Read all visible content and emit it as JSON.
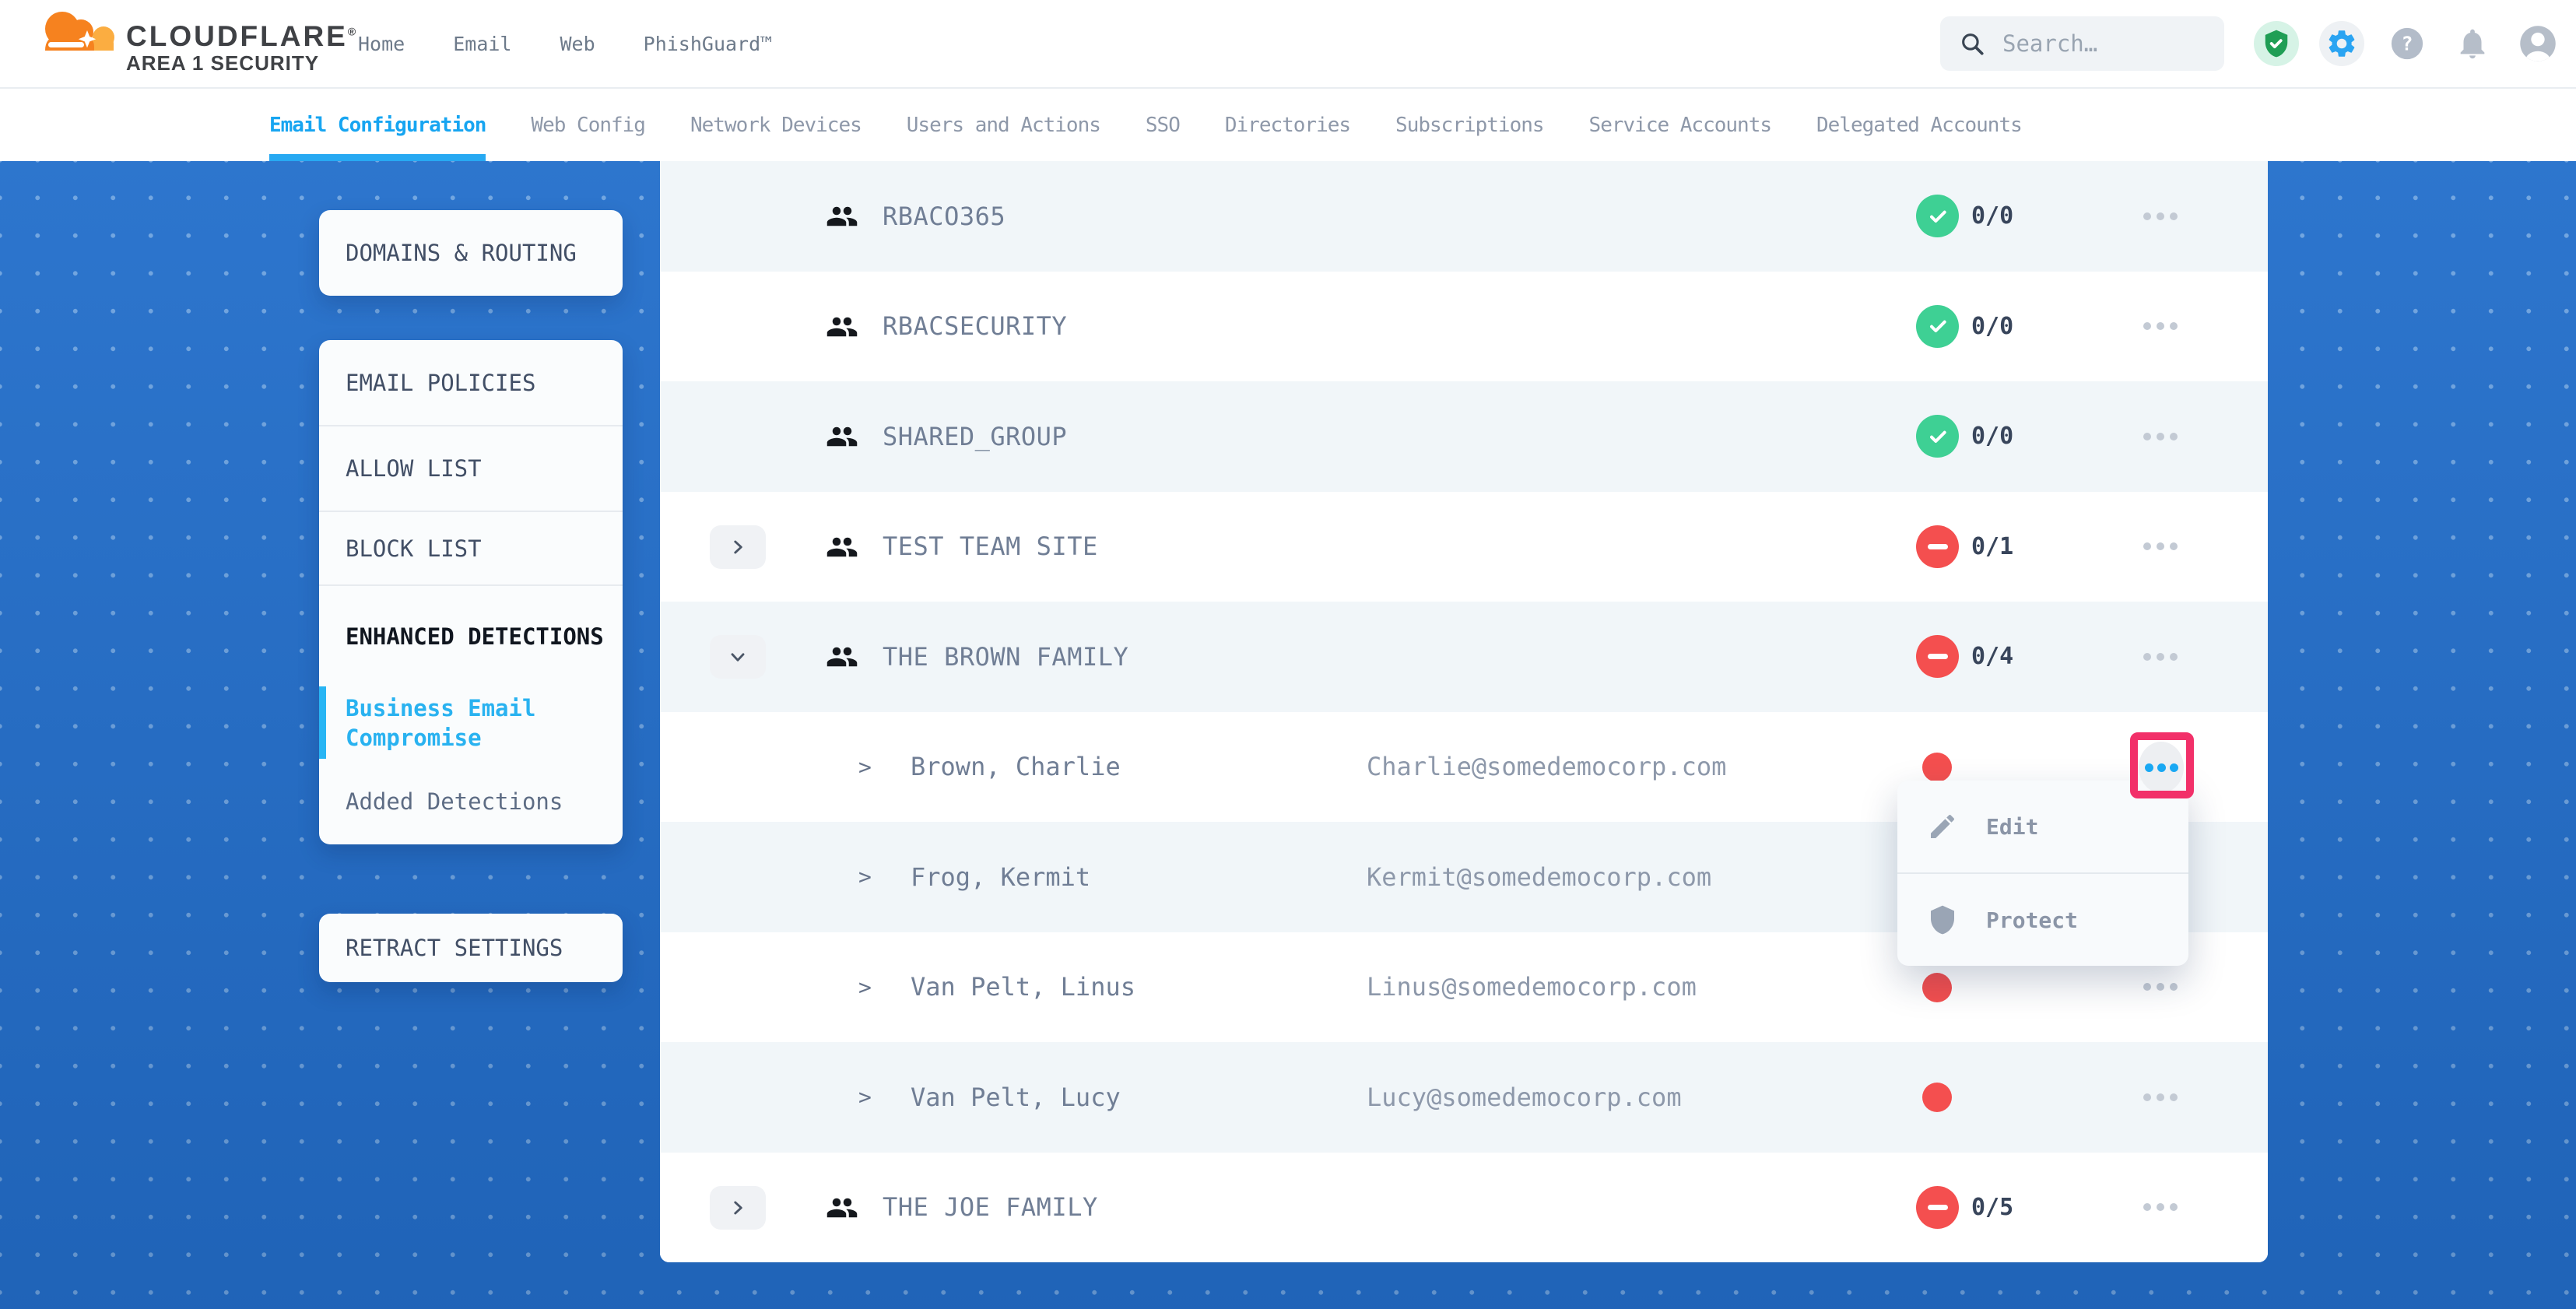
{
  "brand": {
    "name": "CLOUDFLARE",
    "reg": "®",
    "subtitle": "AREA 1 SECURITY"
  },
  "top_nav": [
    {
      "label": "Home"
    },
    {
      "label": "Email"
    },
    {
      "label": "Web"
    },
    {
      "label": "PhishGuard™"
    }
  ],
  "search": {
    "placeholder": "Search…"
  },
  "header_icons": [
    {
      "name": "shield-check-icon"
    },
    {
      "name": "gear-icon"
    },
    {
      "name": "help-icon"
    },
    {
      "name": "bell-icon"
    },
    {
      "name": "account-icon"
    }
  ],
  "tabs": [
    {
      "label": "Email Configuration",
      "active": true
    },
    {
      "label": "Web Config",
      "active": false
    },
    {
      "label": "Network Devices",
      "active": false
    },
    {
      "label": "Users and Actions",
      "active": false
    },
    {
      "label": "SSO",
      "active": false
    },
    {
      "label": "Directories",
      "active": false
    },
    {
      "label": "Subscriptions",
      "active": false
    },
    {
      "label": "Service Accounts",
      "active": false
    },
    {
      "label": "Delegated Accounts",
      "active": false
    }
  ],
  "sidebar": {
    "card1_label": "DOMAINS & ROUTING",
    "card2_items": [
      {
        "label": "EMAIL POLICIES",
        "style": "default",
        "divider": true
      },
      {
        "label": "ALLOW LIST",
        "style": "default",
        "divider": true
      },
      {
        "label": "BLOCK LIST",
        "style": "default",
        "divider": true
      },
      {
        "label": "ENHANCED DETECTIONS",
        "style": "section",
        "divider": false
      },
      {
        "label": "Business Email Compromise",
        "style": "subactive",
        "divider": false
      },
      {
        "label": "Added Detections",
        "style": "sub",
        "divider": false
      }
    ],
    "card3_label": "RETRACT SETTINGS"
  },
  "table": {
    "rows": [
      {
        "type": "group",
        "name": "RBACO365",
        "status": "protected",
        "count": "0/0",
        "chevron": "none"
      },
      {
        "type": "group",
        "name": "RBACSECURITY",
        "status": "protected",
        "count": "0/0",
        "chevron": "none"
      },
      {
        "type": "group",
        "name": "SHARED_GROUP",
        "status": "protected",
        "count": "0/0",
        "chevron": "none"
      },
      {
        "type": "group",
        "name": "TEST TEAM SITE",
        "status": "unprotected",
        "count": "0/1",
        "chevron": "right"
      },
      {
        "type": "group",
        "name": "THE BROWN FAMILY",
        "status": "unprotected",
        "count": "0/4",
        "chevron": "down"
      },
      {
        "type": "member",
        "name": "Brown, Charlie",
        "email": "Charlie@somedemocorp.com",
        "status": "unprotected",
        "highlighted": true
      },
      {
        "type": "member",
        "name": "Frog, Kermit",
        "email": "Kermit@somedemocorp.com",
        "status": "unprotected",
        "highlighted": false
      },
      {
        "type": "member",
        "name": "Van Pelt, Linus",
        "email": "Linus@somedemocorp.com",
        "status": "unprotected",
        "highlighted": false
      },
      {
        "type": "member",
        "name": "Van Pelt, Lucy",
        "email": "Lucy@somedemocorp.com",
        "status": "unprotected",
        "highlighted": false
      },
      {
        "type": "group",
        "name": "THE JOE FAMILY",
        "status": "unprotected",
        "count": "0/5",
        "chevron": "right"
      }
    ]
  },
  "context_menu": {
    "items": [
      {
        "icon": "pencil-icon",
        "label": "Edit"
      },
      {
        "icon": "shield-icon",
        "label": "Protect"
      }
    ]
  },
  "colors": {
    "accent_blue": "#17a5f1",
    "link_blue": "#29b2f0",
    "brand_orange": "#f6821f",
    "brand_orange_light": "#fbad41",
    "ok_green": "#3ed094",
    "alert_red": "#f44f4f",
    "highlight_pink": "#f23069",
    "page_blue": "#2471ce"
  }
}
